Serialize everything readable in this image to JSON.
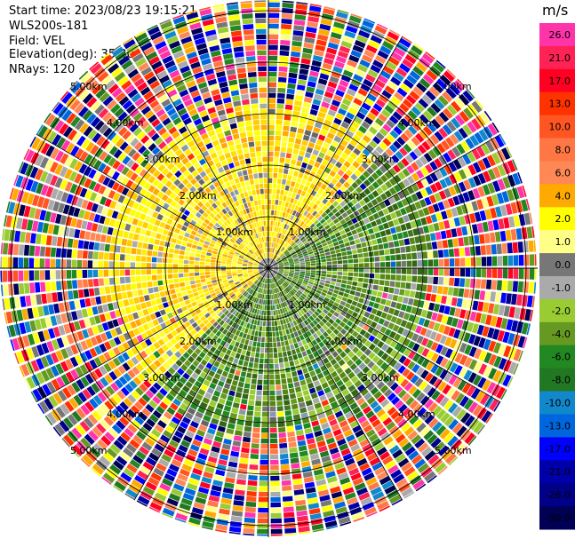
{
  "header": {
    "start_time": "Start time: 2023/08/23 19:15:21",
    "instrument": "WLS200s-181",
    "field": "Field: VEL",
    "elevation": "Elevation(deg): 35.30",
    "nrays": "NRays: 120"
  },
  "chart_data": {
    "type": "heatmap",
    "projection": "polar-ppi",
    "units": "m/s",
    "range_rings": [
      {
        "range_km": 1,
        "labels": [
          "1.00km",
          "1.00km",
          "1.00km",
          "1.00km"
        ]
      },
      {
        "range_km": 2,
        "labels": [
          "2.00km",
          "2.00km",
          "2.00km",
          "2.00km"
        ]
      },
      {
        "range_km": 3,
        "labels": [
          "3.00km",
          "3.00km",
          "3.00km",
          "3.00km"
        ]
      },
      {
        "range_km": 4,
        "labels": [
          "4.00km",
          "4.00km",
          "4.00km",
          "4.00km"
        ]
      },
      {
        "range_km": 5,
        "labels": [
          "5.00km",
          "5.00km",
          "5.00km",
          "5.00km"
        ]
      }
    ],
    "max_range_km": 5.2,
    "n_rays": 120,
    "spokes_every_deg": 30,
    "velocity_pattern": {
      "yellow_sector_deg": [
        225,
        45
      ],
      "green_sector_deg": [
        45,
        225
      ],
      "clean_radius_km": 3.0,
      "noise_start_km": 3.3
    },
    "colorbar": {
      "title": "m/s",
      "ticks": [
        "26.0",
        "21.0",
        "17.0",
        "13.0",
        "10.0",
        "8.0",
        "6.0",
        "4.0",
        "2.0",
        "1.0",
        "0.0",
        "-1.0",
        "-2.0",
        "-4.0",
        "-6.0",
        "-8.0",
        "-10.0",
        "-13.0",
        "-17.0",
        "-21.0",
        "-26.0",
        "-30.0"
      ],
      "colors": [
        "#ff33aa",
        "#ff2255",
        "#ff0022",
        "#ff3300",
        "#ff5522",
        "#ff7744",
        "#ff8855",
        "#ffaa00",
        "#ffff00",
        "#ffff88",
        "#777777",
        "#aaaaaa",
        "#99cc33",
        "#669922",
        "#228822",
        "#227722",
        "#1188cc",
        "#0066dd",
        "#0000ff",
        "#0000aa",
        "#000088",
        "#000055"
      ]
    }
  }
}
